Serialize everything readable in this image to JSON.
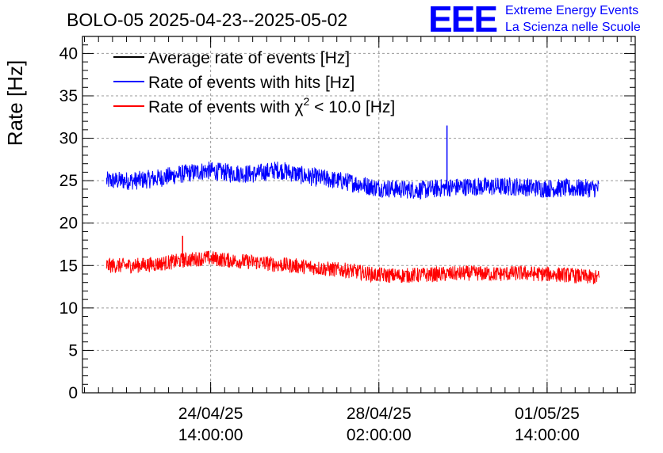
{
  "header": {
    "title": "BOLO-05 2025-04-23--2025-05-02",
    "logo_text": "EEE",
    "logo_line1": "Extreme Energy Events",
    "logo_line2": "La Scienza nelle Scuole"
  },
  "chart_data": {
    "type": "line",
    "ylabel": "Rate [Hz]",
    "xlabel": "",
    "ylim": [
      0,
      42
    ],
    "yticks": [
      0,
      5,
      10,
      15,
      20,
      25,
      30,
      35,
      40
    ],
    "xlim": [
      "2025-04-21T22:00",
      "2025-05-03T10:00"
    ],
    "xticks": [
      {
        "at": "2025-04-24T14:00",
        "line1": "24/04/25",
        "line2": "14:00:00"
      },
      {
        "at": "2025-04-28T02:00",
        "line1": "28/04/25",
        "line2": "02:00:00"
      },
      {
        "at": "2025-05-01T14:00",
        "line1": "01/05/25",
        "line2": "14:00:00"
      }
    ],
    "grid": true,
    "legend_position": "top-left",
    "series": [
      {
        "name": "Average rate of events [Hz]",
        "color": "#000000",
        "x": [],
        "values": []
      },
      {
        "name": "Rate of events with hits [Hz]",
        "color": "#0000ff",
        "x": [
          "2025-04-23T00:00",
          "2025-04-23T12:00",
          "2025-04-24T00:00",
          "2025-04-24T12:00",
          "2025-04-25T00:00",
          "2025-04-25T12:00",
          "2025-04-26T00:00",
          "2025-04-26T12:00",
          "2025-04-27T00:00",
          "2025-04-27T12:00",
          "2025-04-28T00:00",
          "2025-04-28T12:00",
          "2025-04-29T00:00",
          "2025-04-29T12:00",
          "2025-04-30T00:00",
          "2025-04-30T12:00",
          "2025-05-01T00:00",
          "2025-05-01T12:00",
          "2025-05-02T00:00",
          "2025-05-02T12:00"
        ],
        "values": [
          25,
          25.3,
          25.8,
          26.2,
          25.9,
          25.8,
          26.3,
          25.6,
          25.2,
          24.8,
          24.2,
          24.0,
          23.9,
          24.2,
          24.3,
          24.3,
          24.3,
          24.1,
          24.1,
          24.1
        ],
        "noise": 1.1,
        "spikes": [
          {
            "x": "2025-04-29T12:00",
            "value": 31.5
          }
        ]
      },
      {
        "name": "Rate of events with χ² < 10.0 [Hz]",
        "legend_main": "Rate of events with ",
        "legend_chi": "χ",
        "legend_sup": "2",
        "legend_rest": " < 10.0 [Hz]",
        "color": "#ff0000",
        "x": [
          "2025-04-23T00:00",
          "2025-04-23T12:00",
          "2025-04-24T00:00",
          "2025-04-24T12:00",
          "2025-04-25T00:00",
          "2025-04-25T12:00",
          "2025-04-26T00:00",
          "2025-04-26T12:00",
          "2025-04-27T00:00",
          "2025-04-27T12:00",
          "2025-04-28T00:00",
          "2025-04-28T12:00",
          "2025-04-29T00:00",
          "2025-04-29T12:00",
          "2025-04-30T00:00",
          "2025-04-30T12:00",
          "2025-05-01T00:00",
          "2025-05-01T12:00",
          "2025-05-02T00:00",
          "2025-05-02T12:00"
        ],
        "values": [
          15.0,
          15.2,
          15.6,
          15.9,
          15.6,
          15.4,
          15.1,
          14.9,
          14.6,
          14.4,
          13.9,
          13.8,
          13.9,
          14.0,
          14.1,
          14.0,
          14.1,
          14.0,
          13.9,
          13.6
        ],
        "noise": 0.9,
        "spikes": [
          {
            "x": "2025-04-24T00:00",
            "value": 18.5
          }
        ]
      }
    ]
  }
}
